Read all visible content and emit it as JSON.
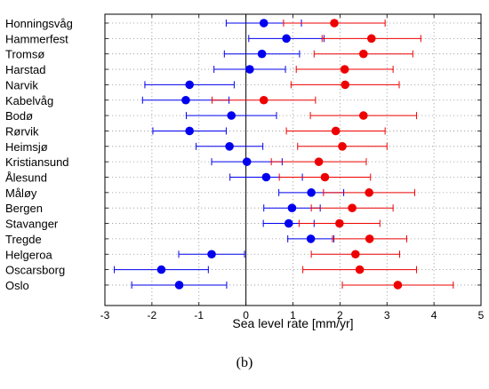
{
  "panel_label": "(b)",
  "chart_data": {
    "type": "errorbar",
    "xlabel": "Sea level rate [mm/yr]",
    "xlim": [
      -3,
      5
    ],
    "xticks": [
      -3,
      -2,
      -1,
      0,
      1,
      2,
      3,
      4,
      5
    ],
    "grid": true,
    "categories": [
      "Honningsvåg",
      "Hammerfest",
      "Tromsø",
      "Harstad",
      "Narvik",
      "Kabelvåg",
      "Bodø",
      "Rørvik",
      "Heimsjø",
      "Kristiansund",
      "Ålesund",
      "Måløy",
      "Bergen",
      "Stavanger",
      "Tregde",
      "Helgeroa",
      "Oscarsborg",
      "Oslo"
    ],
    "series": [
      {
        "color": "#0000ee",
        "values": [
          0.38,
          0.86,
          0.34,
          0.08,
          -1.2,
          -1.28,
          -0.31,
          -1.2,
          -0.35,
          0.02,
          0.43,
          1.39,
          0.98,
          0.91,
          1.38,
          -0.73,
          -1.8,
          -1.42
        ],
        "error_lower": [
          -0.42,
          0.06,
          -0.46,
          -0.68,
          -2.15,
          -2.2,
          -1.27,
          -1.98,
          -1.06,
          -0.73,
          -0.34,
          0.7,
          0.38,
          0.37,
          0.89,
          -1.43,
          -2.8,
          -2.43
        ],
        "error_upper": [
          1.18,
          1.66,
          1.14,
          0.84,
          -0.25,
          -0.36,
          0.65,
          -0.42,
          0.36,
          0.77,
          1.2,
          2.08,
          1.58,
          1.45,
          1.87,
          -0.03,
          -0.8,
          -0.41
        ]
      },
      {
        "color": "#ee0000",
        "values": [
          1.88,
          2.67,
          2.5,
          2.1,
          2.11,
          0.38,
          2.5,
          1.91,
          2.05,
          1.55,
          1.68,
          2.62,
          2.26,
          1.99,
          2.63,
          2.33,
          2.42,
          3.23
        ],
        "error_lower": [
          0.8,
          1.62,
          1.45,
          1.07,
          0.96,
          -0.72,
          1.37,
          0.86,
          1.1,
          0.54,
          0.71,
          1.65,
          1.39,
          1.13,
          1.84,
          1.39,
          1.21,
          2.05
        ],
        "error_upper": [
          2.96,
          3.72,
          3.55,
          3.13,
          3.26,
          1.48,
          3.63,
          2.96,
          3.0,
          2.56,
          2.65,
          3.59,
          3.13,
          2.85,
          3.42,
          3.27,
          3.63,
          4.41
        ]
      }
    ]
  }
}
